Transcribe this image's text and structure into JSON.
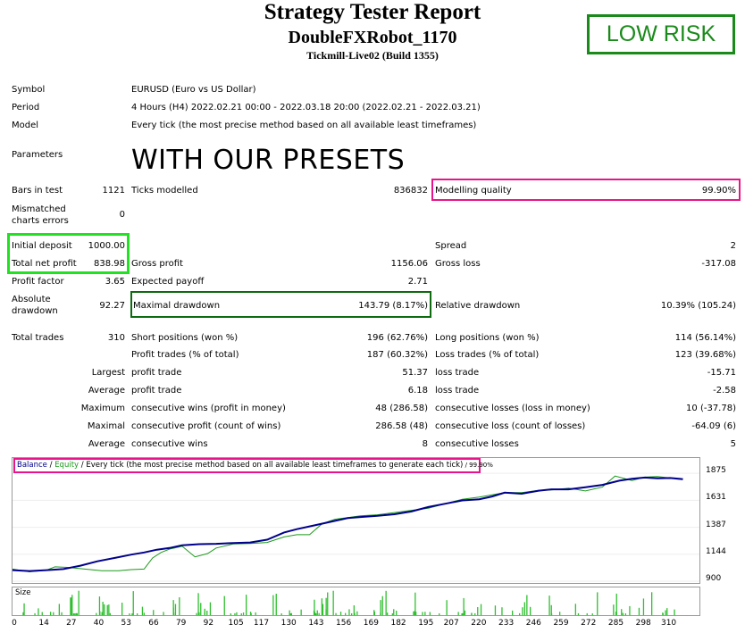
{
  "header": {
    "title": "Strategy Tester Report",
    "robot": "DoubleFXRobot_1170",
    "server": "Tickmill-Live02 (Build 1355)",
    "badge": "LOW RISK",
    "overlay_text": "WITH OUR PRESETS"
  },
  "info": {
    "symbol_label": "Symbol",
    "symbol_value": "EURUSD (Euro vs US Dollar)",
    "period_label": "Period",
    "period_value": "4 Hours (H4) 2022.02.21 00:00 - 2022.03.18 20:00 (2022.02.21 - 2022.03.21)",
    "model_label": "Model",
    "model_value": "Every tick (the most precise method based on all available least timeframes)",
    "parameters_label": "Parameters"
  },
  "stats": {
    "bars_label": "Bars in test",
    "bars_value": "1121",
    "ticks_label": "Ticks modelled",
    "ticks_value": "836832",
    "quality_label": "Modelling quality",
    "quality_value": "99.90%",
    "mismatch_label_1": "Mismatched",
    "mismatch_label_2": "charts errors",
    "mismatch_value": "0",
    "deposit_label": "Initial deposit",
    "deposit_value": "1000.00",
    "spread_label": "Spread",
    "spread_value": "2",
    "netprofit_label": "Total net profit",
    "netprofit_value": "838.98",
    "grossprofit_label": "Gross profit",
    "grossprofit_value": "1156.06",
    "grossloss_label": "Gross loss",
    "grossloss_value": "-317.08",
    "pf_label": "Profit factor",
    "pf_value": "3.65",
    "ep_label": "Expected payoff",
    "ep_value": "2.71",
    "absdd_label_1": "Absolute",
    "absdd_label_2": "drawdown",
    "absdd_value": "92.27",
    "maxdd_label": "Maximal drawdown",
    "maxdd_value": "143.79 (8.17%)",
    "reldd_label": "Relative drawdown",
    "reldd_value": "10.39% (105.24)",
    "trades_label": "Total trades",
    "trades_value": "310",
    "short_label": "Short positions (won %)",
    "short_value": "196 (62.76%)",
    "long_label": "Long positions (won %)",
    "long_value": "114 (56.14%)",
    "ptrades_label": "Profit trades (% of total)",
    "ptrades_value": "187 (60.32%)",
    "ltrades_label": "Loss trades (% of total)",
    "ltrades_value": "123 (39.68%)",
    "largest": "Largest",
    "largest_p_label": "profit trade",
    "largest_p_value": "51.37",
    "largest_l_label": "loss trade",
    "largest_l_value": "-15.71",
    "average": "Average",
    "average_p_label": "profit trade",
    "average_p_value": "6.18",
    "average_l_label": "loss trade",
    "average_l_value": "-2.58",
    "maximum": "Maximum",
    "maxcw_label": "consecutive wins (profit in money)",
    "maxcw_value": "48 (286.58)",
    "maxcl_label": "consecutive losses (loss in money)",
    "maxcl_value": "10 (-37.78)",
    "maximal": "Maximal",
    "mxcp_label": "consecutive profit (count of wins)",
    "mxcp_value": "286.58 (48)",
    "mxcl_label": "consecutive loss (count of losses)",
    "mxcl_value": "-64.09 (6)",
    "average2": "Average",
    "avcw_label": "consecutive wins",
    "avcw_value": "8",
    "avcl_label": "consecutive losses",
    "avcl_value": "5"
  },
  "graph": {
    "legend_balance": "Balance",
    "legend_sep1": " / ",
    "legend_equity": "Equity",
    "legend_rest": " / Every tick (the most precise method based on all available least timeframes to generate each tick)",
    "legend_quality": " / 99.90%",
    "size_label": "Size",
    "balance_color": "#00008b",
    "equity_color": "#1a9a1a"
  },
  "chart_data": {
    "type": "line",
    "y_ticks": [
      "1875",
      "1631",
      "1387",
      "1144",
      "900"
    ],
    "x_ticks": [
      "0",
      "14",
      "27",
      "40",
      "53",
      "66",
      "79",
      "92",
      "105",
      "117",
      "130",
      "143",
      "156",
      "169",
      "182",
      "195",
      "207",
      "220",
      "233",
      "246",
      "259",
      "272",
      "285",
      "298",
      "310"
    ],
    "ylim": [
      900,
      1900
    ],
    "xlim": [
      0,
      320
    ],
    "series": [
      {
        "name": "Balance",
        "x": [
          0,
          8,
          16,
          24,
          32,
          40,
          48,
          56,
          62,
          68,
          74,
          80,
          88,
          96,
          104,
          112,
          120,
          128,
          134,
          140,
          146,
          152,
          158,
          164,
          172,
          180,
          188,
          196,
          204,
          212,
          220,
          226,
          232,
          240,
          248,
          254,
          262,
          270,
          278,
          286,
          292,
          298,
          304,
          310,
          316
        ],
        "values": [
          1000,
          992,
          1000,
          1010,
          1040,
          1080,
          1110,
          1140,
          1160,
          1185,
          1200,
          1225,
          1235,
          1238,
          1245,
          1250,
          1275,
          1340,
          1370,
          1395,
          1420,
          1445,
          1470,
          1480,
          1490,
          1505,
          1530,
          1570,
          1600,
          1630,
          1640,
          1665,
          1700,
          1690,
          1718,
          1730,
          1730,
          1748,
          1770,
          1808,
          1825,
          1836,
          1830,
          1832,
          1822
        ]
      },
      {
        "name": "Equity",
        "x": [
          0,
          8,
          16,
          20,
          26,
          34,
          42,
          50,
          56,
          62,
          66,
          70,
          74,
          80,
          86,
          92,
          96,
          104,
          112,
          120,
          128,
          134,
          140,
          146,
          152,
          158,
          164,
          172,
          180,
          188,
          196,
          204,
          212,
          220,
          226,
          232,
          240,
          248,
          254,
          262,
          270,
          278,
          284,
          292,
          298,
          304,
          310,
          316
        ],
        "values": [
          1010,
          985,
          1000,
          1030,
          1025,
          1010,
          995,
          995,
          1005,
          1010,
          1110,
          1160,
          1190,
          1215,
          1120,
          1150,
          1200,
          1236,
          1240,
          1250,
          1300,
          1320,
          1320,
          1420,
          1460,
          1475,
          1490,
          1500,
          1520,
          1540,
          1560,
          1600,
          1640,
          1660,
          1680,
          1700,
          1700,
          1720,
          1725,
          1740,
          1715,
          1750,
          1850,
          1810,
          1840,
          1845,
          1832,
          1825
        ]
      }
    ]
  }
}
